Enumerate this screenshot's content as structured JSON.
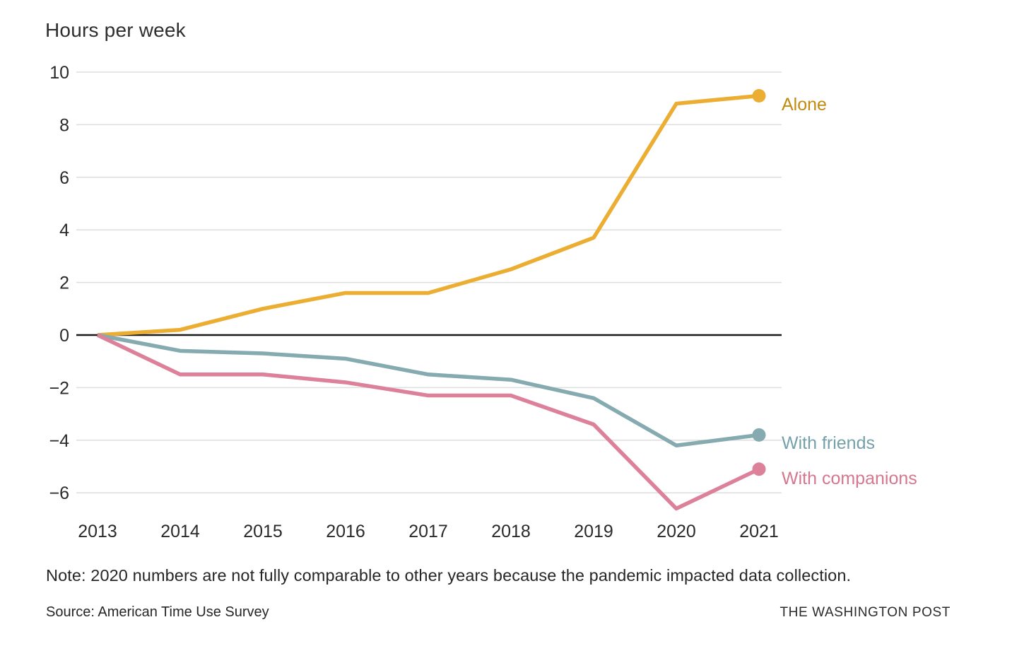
{
  "title": "Hours per week",
  "note": "Note: 2020 numbers are not fully comparable to other years because the pandemic impacted data collection.",
  "source": "Source: American Time Use Survey",
  "brand": "THE WASHINGTON POST",
  "colors": {
    "text": "#2a2a2a",
    "gridline": "#dedede",
    "zero_line": "#1a1a1a",
    "alone_line": "#ecae32",
    "alone_label": "#c18b0d",
    "friends_line": "#85aaaf",
    "friends_label": "#74a1a9",
    "companions_line": "#dd8099",
    "companions_label": "#d4778f"
  },
  "chart_data": {
    "type": "line",
    "title": "Hours per week",
    "xlabel": "",
    "ylabel": "Hours per week",
    "x": [
      2013,
      2014,
      2015,
      2016,
      2017,
      2018,
      2019,
      2020,
      2021
    ],
    "x_tick_labels": [
      "2013",
      "2014",
      "2015",
      "2016",
      "2017",
      "2018",
      "2019",
      "2020",
      "2021"
    ],
    "y_ticks": [
      10,
      8,
      6,
      4,
      2,
      0,
      -2,
      -4,
      -6
    ],
    "y_tick_labels": [
      "10",
      "8",
      "6",
      "4",
      "2",
      "0",
      "−2",
      "−4",
      "−6"
    ],
    "ylim": [
      -7.3,
      10.6
    ],
    "grid": true,
    "zero_baseline": true,
    "legend_position": "end-of-line",
    "series": [
      {
        "name": "Alone",
        "label": "Alone",
        "color": "#ecae32",
        "label_color": "#c18b0d",
        "values": [
          0,
          0.2,
          1.0,
          1.6,
          1.6,
          2.5,
          3.7,
          8.8,
          9.1
        ]
      },
      {
        "name": "With friends",
        "label": "With friends",
        "color": "#85aaaf",
        "label_color": "#74a1a9",
        "values": [
          0,
          -0.6,
          -0.7,
          -0.9,
          -1.5,
          -1.7,
          -2.4,
          -4.2,
          -3.8
        ]
      },
      {
        "name": "With companions",
        "label": "With companions",
        "color": "#dd8099",
        "label_color": "#d4778f",
        "values": [
          0,
          -1.5,
          -1.5,
          -1.8,
          -2.3,
          -2.3,
          -3.4,
          -6.6,
          -5.1
        ]
      }
    ]
  }
}
